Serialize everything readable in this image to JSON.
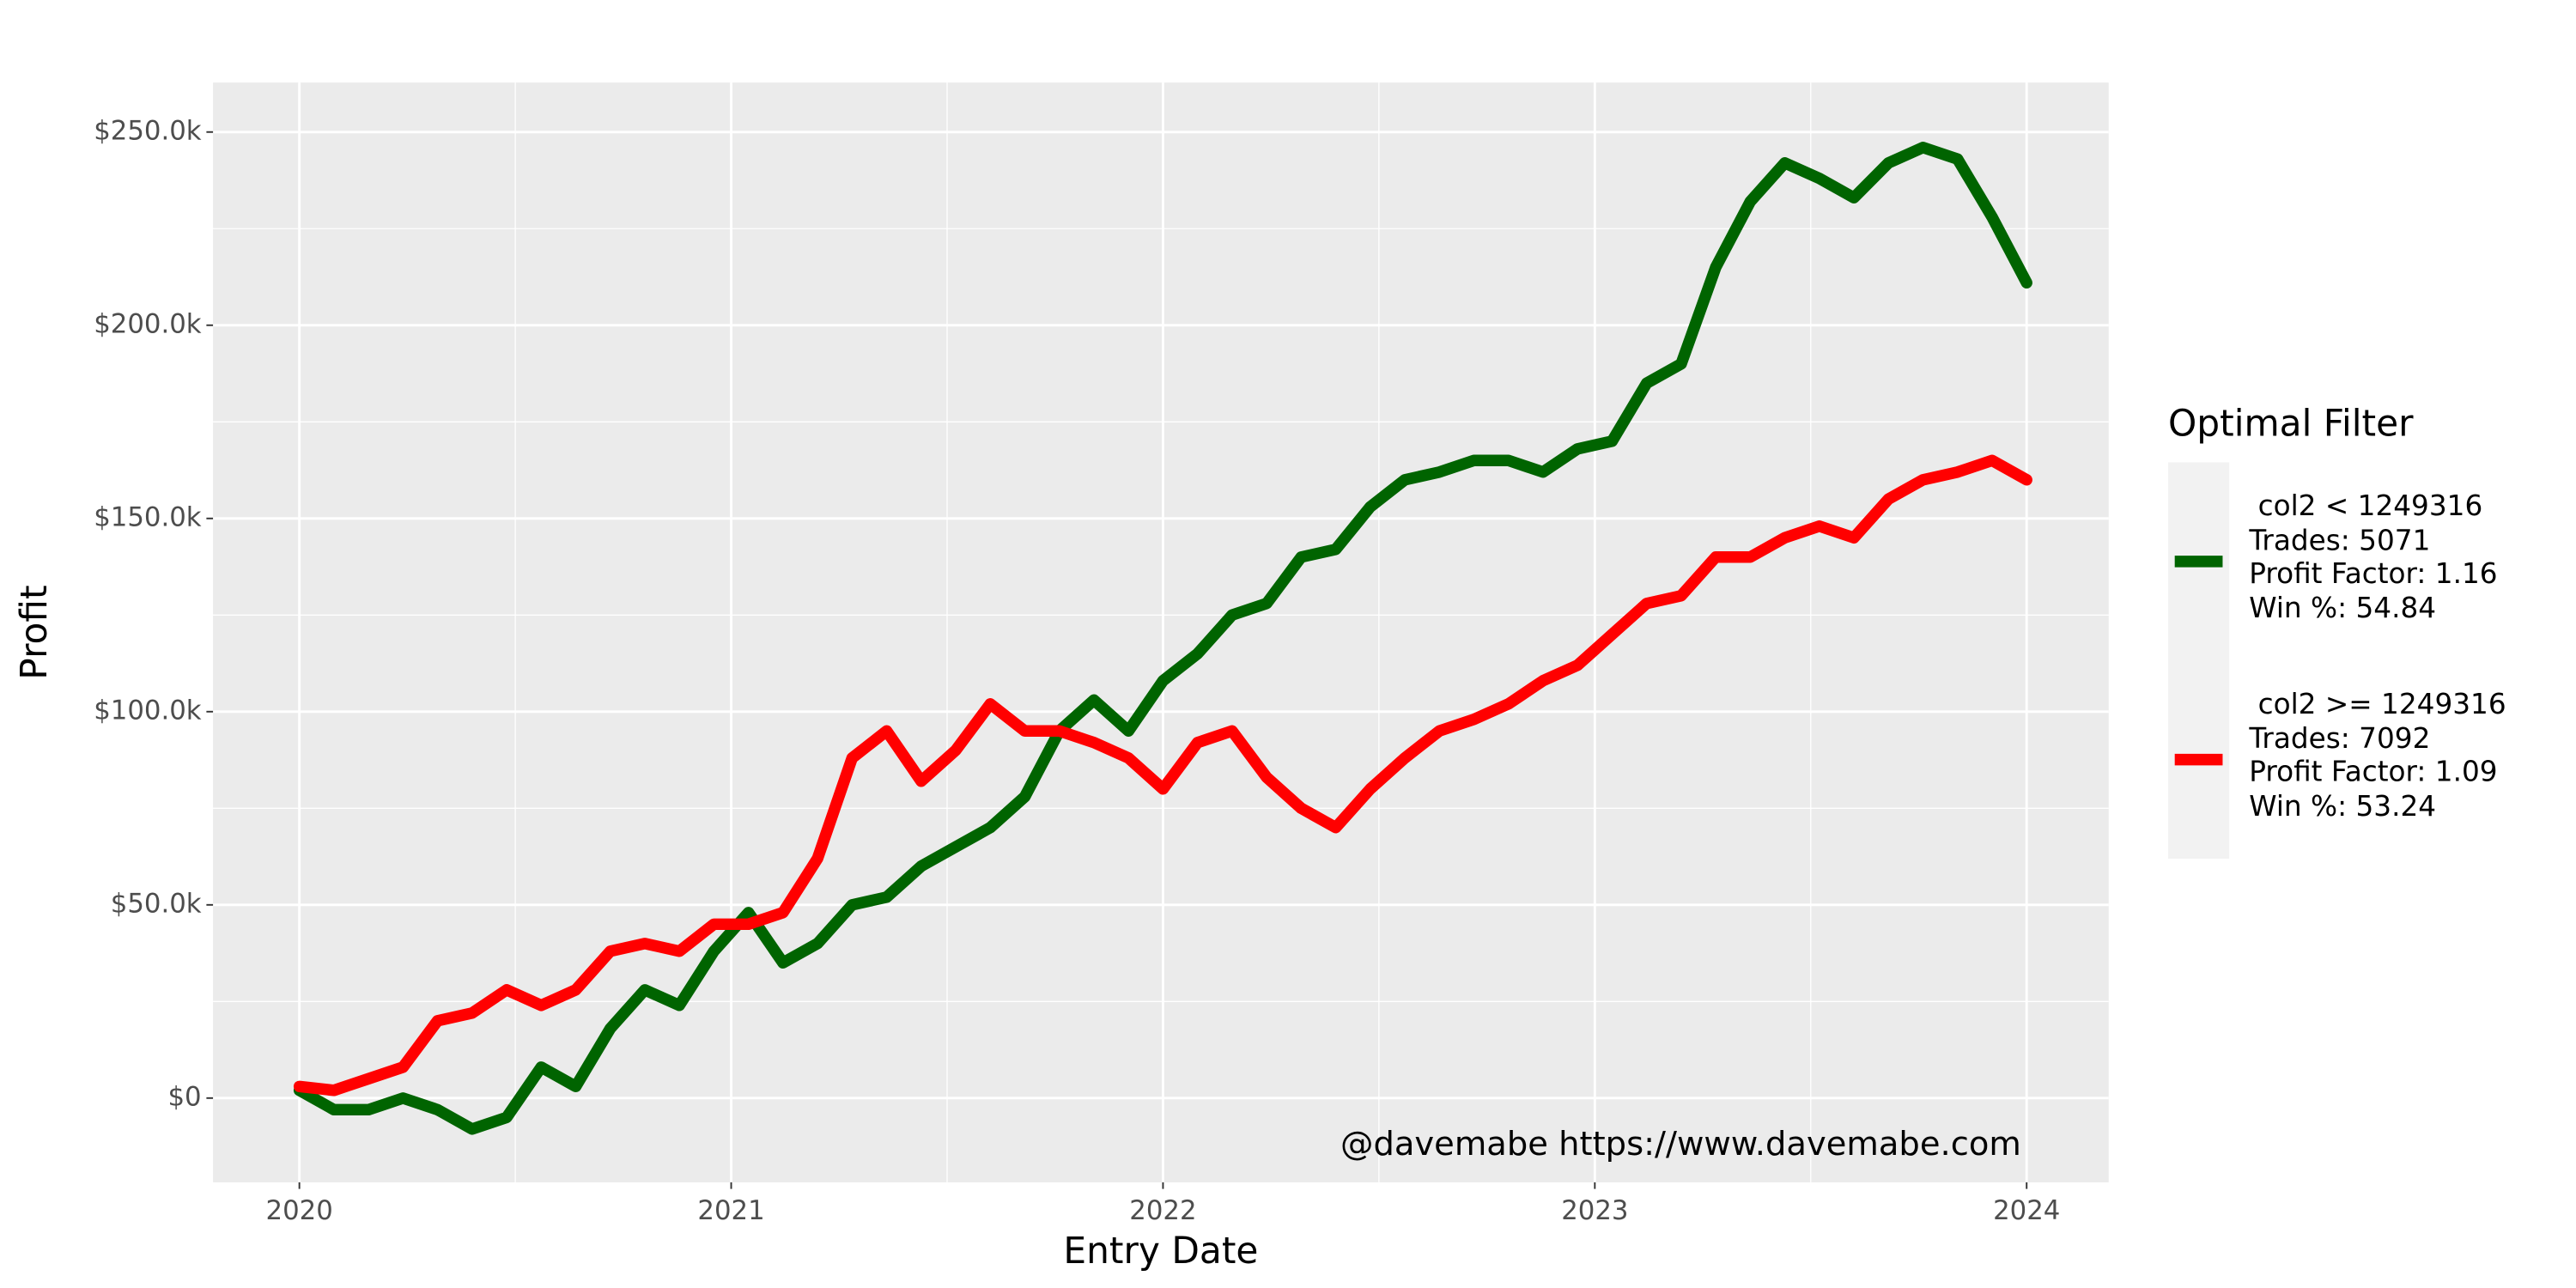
{
  "chart_data": {
    "type": "line",
    "x_label": "Entry Date",
    "y_label": "Profit",
    "annotation": "@davemabe https://www.davemabe.com",
    "legend_title": "Optimal Filter",
    "legend_position": "right",
    "grid": true,
    "xlim": [
      2019.8,
      2024.19
    ],
    "xticks": [
      2020,
      2021,
      2022,
      2023,
      2024
    ],
    "ylim": [
      -21800,
      262800
    ],
    "yticks": [
      {
        "value": 0,
        "label": "$0"
      },
      {
        "value": 50000,
        "label": "$50.0k"
      },
      {
        "value": 100000,
        "label": "$100.0k"
      },
      {
        "value": 150000,
        "label": "$150.0k"
      },
      {
        "value": 200000,
        "label": "$200.0k"
      },
      {
        "value": 250000,
        "label": "$250.0k"
      }
    ],
    "x": [
      2020.0,
      2020.08,
      2020.16,
      2020.24,
      2020.32,
      2020.4,
      2020.48,
      2020.56,
      2020.64,
      2020.72,
      2020.8,
      2020.88,
      2020.96,
      2021.04,
      2021.12,
      2021.2,
      2021.28,
      2021.36,
      2021.44,
      2021.52,
      2021.6,
      2021.68,
      2021.76,
      2021.84,
      2021.92,
      2022.0,
      2022.08,
      2022.16,
      2022.24,
      2022.32,
      2022.4,
      2022.48,
      2022.56,
      2022.64,
      2022.72,
      2022.8,
      2022.88,
      2022.96,
      2023.04,
      2023.12,
      2023.2,
      2023.28,
      2023.36,
      2023.44,
      2023.52,
      2023.6,
      2023.68,
      2023.76,
      2023.84,
      2023.92,
      2024.0
    ],
    "series": [
      {
        "name": " col2 < 1249316\nTrades: 5071\nProfit Factor: 1.16\nWin %: 54.84",
        "color": "#006400",
        "values": [
          2000,
          -3000,
          -3000,
          0,
          -3000,
          -8000,
          -5000,
          8000,
          3000,
          18000,
          28000,
          24000,
          38000,
          48000,
          35000,
          40000,
          50000,
          52000,
          60000,
          65000,
          70000,
          78000,
          95000,
          103000,
          95000,
          108000,
          115000,
          125000,
          128000,
          140000,
          142000,
          153000,
          160000,
          162000,
          165000,
          165000,
          162000,
          168000,
          170000,
          185000,
          190000,
          215000,
          232000,
          242000,
          238000,
          233000,
          242000,
          246000,
          243000,
          228000,
          211000
        ]
      },
      {
        "name": " col2 >= 1249316\nTrades: 7092\nProfit Factor: 1.09\nWin %: 53.24",
        "color": "#ff0000",
        "values": [
          3000,
          2000,
          5000,
          8000,
          20000,
          22000,
          28000,
          24000,
          28000,
          38000,
          40000,
          38000,
          45000,
          45000,
          48000,
          62000,
          88000,
          95000,
          82000,
          90000,
          102000,
          95000,
          95000,
          92000,
          88000,
          80000,
          92000,
          95000,
          83000,
          75000,
          70000,
          80000,
          88000,
          95000,
          98000,
          102000,
          108000,
          112000,
          120000,
          128000,
          130000,
          140000,
          140000,
          145000,
          148000,
          145000,
          155000,
          160000,
          162000,
          165000,
          160000
        ]
      }
    ]
  }
}
